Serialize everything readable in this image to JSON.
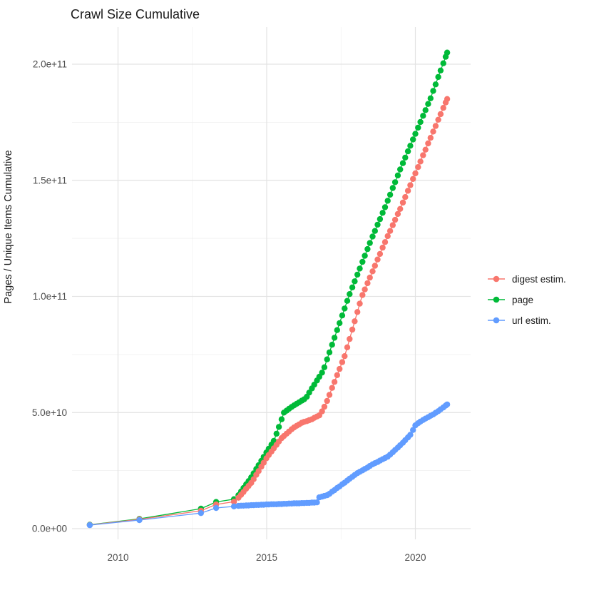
{
  "title": "Crawl Size Cumulative",
  "y_axis": {
    "label": "Pages / Unique Items Cumulative",
    "ticks": [
      "0.0e+00",
      "5.0e+10",
      "1.0e+11",
      "1.5e+11",
      "2.0e+11"
    ]
  },
  "x_axis": {
    "ticks": [
      "2010",
      "2015",
      "2020"
    ]
  },
  "legend": {
    "items": [
      {
        "label": "digest estim.",
        "color": "#F8766D"
      },
      {
        "label": "page",
        "color": "#00BA38"
      },
      {
        "label": "url estim.",
        "color": "#619CFF"
      }
    ]
  },
  "chart_data": {
    "type": "line",
    "title": "Crawl Size Cumulative",
    "xlabel": "",
    "ylabel": "Pages / Unique Items Cumulative",
    "xlim": [
      2008.4,
      2021.9
    ],
    "ylim": [
      0,
      210000000000.0
    ],
    "x_breaks": [
      2010,
      2015,
      2020
    ],
    "x_minor_breaks": [
      2012.5,
      2017.5
    ],
    "y_breaks_billions": [
      0,
      50,
      100,
      150,
      200
    ],
    "y_minor_breaks_billions": [
      25,
      75,
      125,
      175
    ],
    "grid": true,
    "legend_position": "right",
    "values_unit": "billions of items (1e9)",
    "x": [
      2009.05,
      2010.72,
      2012.79,
      2013.3,
      2013.9,
      2014.05,
      2014.14,
      2014.22,
      2014.31,
      2014.39,
      2014.48,
      2014.56,
      2014.65,
      2014.73,
      2014.82,
      2014.9,
      2014.99,
      2015.07,
      2015.16,
      2015.24,
      2015.33,
      2015.41,
      2015.5,
      2015.58,
      2015.67,
      2015.75,
      2015.84,
      2015.92,
      2016.01,
      2016.09,
      2016.18,
      2016.26,
      2016.35,
      2016.43,
      2016.52,
      2016.6,
      2016.69,
      2016.77,
      2016.86,
      2016.94,
      2017.03,
      2017.11,
      2017.2,
      2017.28,
      2017.37,
      2017.45,
      2017.54,
      2017.62,
      2017.71,
      2017.79,
      2017.88,
      2017.96,
      2018.05,
      2018.13,
      2018.22,
      2018.3,
      2018.39,
      2018.47,
      2018.56,
      2018.64,
      2018.73,
      2018.81,
      2018.9,
      2018.98,
      2019.07,
      2019.15,
      2019.24,
      2019.32,
      2019.41,
      2019.49,
      2019.58,
      2019.66,
      2019.75,
      2019.83,
      2019.92,
      2020.0,
      2020.09,
      2020.17,
      2020.26,
      2020.34,
      2020.43,
      2020.51,
      2020.6,
      2020.68,
      2020.77,
      2020.85,
      2020.94,
      2021.02,
      2021.07
    ],
    "series": [
      {
        "name": "digest estim.",
        "color": "#F8766D",
        "values_billions": [
          1.6,
          4.0,
          7.7,
          10.4,
          11.6,
          13.3,
          14.6,
          15.8,
          17.2,
          18.4,
          19.7,
          21.3,
          23.2,
          24.8,
          26.7,
          28.4,
          30.3,
          31.7,
          33.2,
          34.6,
          36.1,
          37.5,
          39.0,
          39.9,
          40.9,
          41.8,
          42.8,
          43.6,
          44.3,
          44.9,
          45.6,
          46.0,
          46.3,
          46.7,
          47.1,
          47.7,
          48.3,
          48.8,
          50.5,
          52.5,
          55.0,
          57.6,
          60.6,
          63.2,
          66.1,
          68.8,
          71.7,
          74.3,
          78.1,
          81.7,
          85.7,
          89.3,
          93.3,
          96.9,
          100.6,
          103.0,
          105.7,
          108.1,
          110.8,
          113.2,
          115.9,
          118.3,
          121.0,
          123.4,
          126.0,
          128.2,
          130.7,
          133.0,
          135.5,
          137.7,
          140.4,
          142.8,
          145.5,
          147.9,
          150.6,
          153.0,
          155.7,
          158.1,
          160.8,
          163.2,
          165.9,
          168.3,
          171.0,
          173.4,
          176.1,
          178.5,
          181.2,
          183.5,
          185.0
        ]
      },
      {
        "name": "page",
        "color": "#00BA38",
        "values_billions": [
          1.7,
          4.2,
          8.6,
          11.5,
          12.7,
          14.4,
          16.0,
          17.5,
          19.1,
          20.5,
          22.1,
          23.8,
          25.7,
          27.3,
          29.2,
          30.9,
          32.8,
          34.4,
          36.2,
          37.8,
          40.9,
          43.8,
          47.1,
          50.0,
          50.8,
          51.6,
          52.4,
          53.1,
          53.8,
          54.4,
          55.1,
          55.7,
          56.8,
          58.6,
          60.4,
          62.0,
          63.8,
          65.4,
          67.2,
          69.5,
          72.9,
          75.9,
          79.2,
          82.2,
          85.5,
          88.5,
          91.8,
          94.8,
          98.1,
          101.0,
          103.9,
          106.5,
          109.4,
          112.0,
          114.9,
          117.5,
          120.4,
          123.0,
          125.8,
          128.2,
          130.9,
          133.3,
          136.0,
          138.4,
          141.2,
          143.8,
          146.7,
          149.2,
          152.1,
          154.7,
          157.4,
          159.8,
          162.5,
          164.9,
          167.6,
          170.0,
          172.7,
          175.1,
          177.8,
          180.2,
          182.9,
          185.3,
          188.5,
          191.3,
          194.5,
          197.3,
          200.4,
          203.2,
          205.0
        ]
      },
      {
        "name": "url estim.",
        "color": "#619CFF",
        "values_billions": [
          1.5,
          3.7,
          6.7,
          8.9,
          9.6,
          9.8,
          9.9,
          9.9,
          10.0,
          10.0,
          10.1,
          10.1,
          10.2,
          10.2,
          10.3,
          10.3,
          10.4,
          10.4,
          10.5,
          10.5,
          10.5,
          10.6,
          10.6,
          10.7,
          10.7,
          10.8,
          10.8,
          10.9,
          10.9,
          10.9,
          11.0,
          11.0,
          11.1,
          11.1,
          11.2,
          11.2,
          11.3,
          13.5,
          13.8,
          14.1,
          14.4,
          15.0,
          15.9,
          16.6,
          17.5,
          18.2,
          19.1,
          19.8,
          20.7,
          21.5,
          22.3,
          23.1,
          23.9,
          24.5,
          25.1,
          25.7,
          26.3,
          27.0,
          27.7,
          28.2,
          28.7,
          29.3,
          29.9,
          30.4,
          31.0,
          31.9,
          32.9,
          33.9,
          34.9,
          35.9,
          37.0,
          38.1,
          39.3,
          40.4,
          42.5,
          44.5,
          45.4,
          46.1,
          46.8,
          47.4,
          48.0,
          48.6,
          49.2,
          49.9,
          50.6,
          51.4,
          52.2,
          53.0,
          53.5
        ]
      }
    ]
  }
}
